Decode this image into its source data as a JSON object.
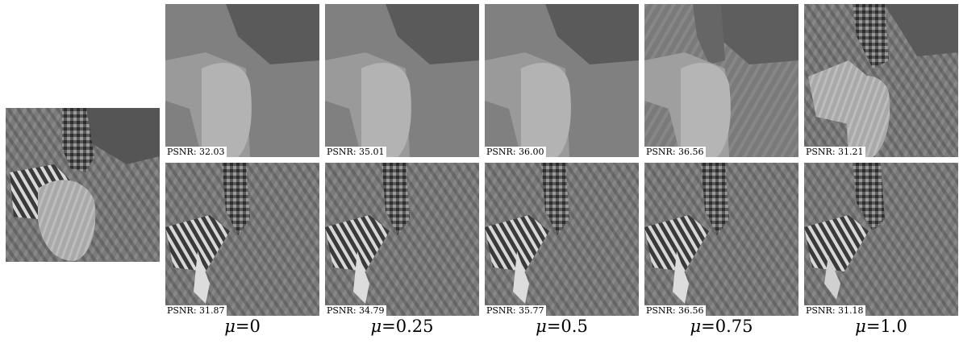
{
  "columns": [
    {
      "mu_label": "=0",
      "psnr_top": "PSNR: 32.03",
      "psnr_bottom": "PSNR: 31.87"
    },
    {
      "mu_label": "=0.25",
      "psnr_top": "PSNR: 35.01",
      "psnr_bottom": "PSNR: 34.79"
    },
    {
      "mu_label": "=0.5",
      "psnr_top": "PSNR: 36.00",
      "psnr_bottom": "PSNR: 35.77"
    },
    {
      "mu_label": "=0.75",
      "psnr_top": "PSNR: 36.56",
      "psnr_bottom": "PSNR: 36.56"
    },
    {
      "mu_label": "=1.0",
      "psnr_top": "PSNR: 31.21",
      "psnr_bottom": "PSNR: 31.18"
    }
  ],
  "mu_symbol": "μ"
}
